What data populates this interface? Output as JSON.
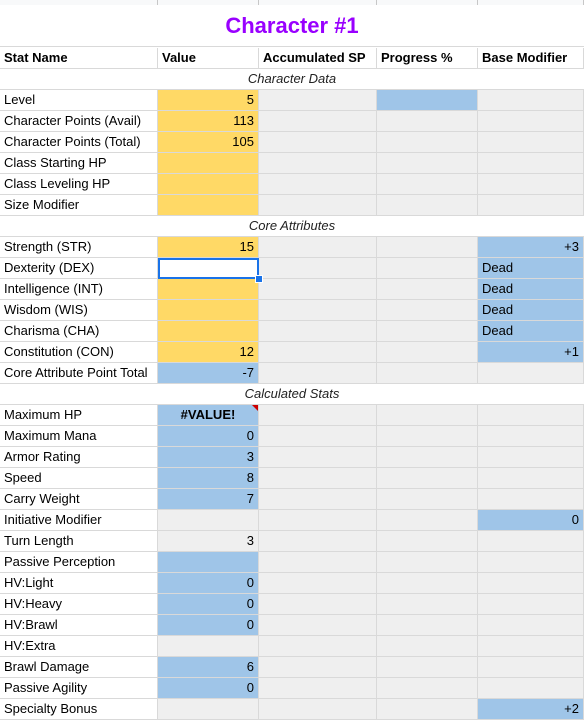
{
  "title": "Character #1",
  "headers": [
    "Stat Name",
    "Value",
    "Accumulated SP",
    "Progress %",
    "Base Modifier"
  ],
  "sections": {
    "character_data": "Character Data",
    "core_attributes": "Core Attributes",
    "calculated_stats": "Calculated Stats"
  },
  "character_data": [
    {
      "name": "Level",
      "value": "5"
    },
    {
      "name": "Character Points (Avail)",
      "value": "113"
    },
    {
      "name": "Character Points (Total)",
      "value": "105"
    },
    {
      "name": "Class Starting HP",
      "value": ""
    },
    {
      "name": "Class Leveling HP",
      "value": ""
    },
    {
      "name": "Size Modifier",
      "value": ""
    }
  ],
  "core_attributes": [
    {
      "name": "Strength (STR)",
      "value": "15",
      "modifier": "+3"
    },
    {
      "name": "Dexterity (DEX)",
      "value": "",
      "modifier": "Dead"
    },
    {
      "name": "Intelligence (INT)",
      "value": "",
      "modifier": "Dead"
    },
    {
      "name": "Wisdom (WIS)",
      "value": "",
      "modifier": "Dead"
    },
    {
      "name": "Charisma (CHA)",
      "value": "",
      "modifier": "Dead"
    },
    {
      "name": "Constitution (CON)",
      "value": "12",
      "modifier": "+1"
    },
    {
      "name": "Core Attribute Point Total",
      "value": "-7",
      "modifier": ""
    }
  ],
  "calculated_stats": [
    {
      "name": "Maximum HP",
      "value": "#VALUE!",
      "modifier": ""
    },
    {
      "name": "Maximum Mana",
      "value": "0",
      "modifier": ""
    },
    {
      "name": "Armor Rating",
      "value": "3",
      "modifier": ""
    },
    {
      "name": "Speed",
      "value": "8",
      "modifier": ""
    },
    {
      "name": "Carry Weight",
      "value": "7",
      "modifier": ""
    },
    {
      "name": "Initiative Modifier",
      "value": "",
      "modifier": "0"
    },
    {
      "name": "Turn Length",
      "value": "3",
      "modifier": ""
    },
    {
      "name": "Passive Perception",
      "value": "",
      "modifier": ""
    },
    {
      "name": "HV:Light",
      "value": "0",
      "modifier": ""
    },
    {
      "name": "HV:Heavy",
      "value": "0",
      "modifier": ""
    },
    {
      "name": "HV:Brawl",
      "value": "0",
      "modifier": ""
    },
    {
      "name": "HV:Extra",
      "value": "",
      "modifier": ""
    },
    {
      "name": "Brawl Damage",
      "value": "6",
      "modifier": ""
    },
    {
      "name": "Passive Agility",
      "value": "0",
      "modifier": ""
    },
    {
      "name": "Specialty Bonus",
      "value": "",
      "modifier": "+2"
    }
  ],
  "colors": {
    "title": "#9900ff",
    "input": "#ffd966",
    "calc": "#9fc5e8",
    "blank": "#efefef",
    "error": "#cc0000",
    "selection": "#1a73e8"
  }
}
